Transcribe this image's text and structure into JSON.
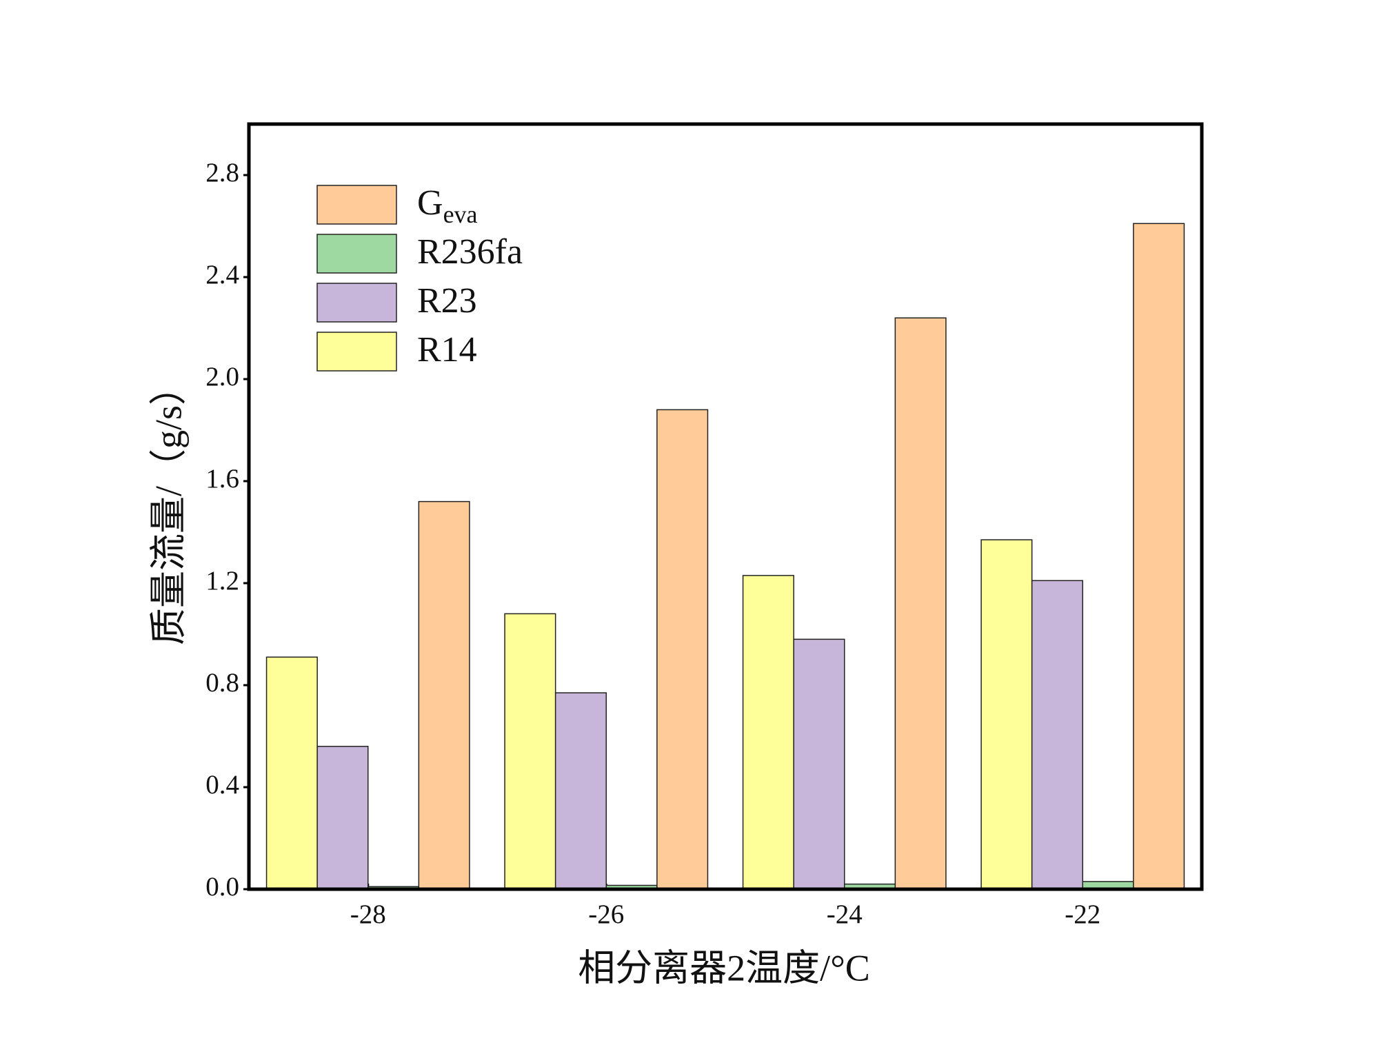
{
  "chart_data": {
    "type": "bar",
    "x_label": "相分离器2温度/°C",
    "y_label": "质量流量/（g/s）",
    "categories": [
      "-28",
      "-26",
      "-24",
      "-22"
    ],
    "series": [
      {
        "name": "R14",
        "color": "#ffff99",
        "values": [
          0.91,
          1.08,
          1.23,
          1.37
        ]
      },
      {
        "name": "R23",
        "color": "#c8b6da",
        "values": [
          0.56,
          0.77,
          0.98,
          1.21
        ]
      },
      {
        "name": "R236fa",
        "color": "#9dd9a0",
        "values": [
          0.01,
          0.015,
          0.02,
          0.03
        ]
      },
      {
        "name": "Geva",
        "color": "#ffcc99",
        "values": [
          1.52,
          1.88,
          2.24,
          2.61
        ]
      }
    ],
    "ylim": [
      0,
      3.0
    ],
    "yticks": [
      {
        "value": 0,
        "label": "0.0"
      },
      0.4,
      0.8,
      1.2,
      1.6,
      {
        "value": 2,
        "label": "2.0"
      },
      2.4,
      2.8
    ],
    "legend": "upper left",
    "legend_order": [
      3,
      2,
      1,
      0
    ]
  }
}
